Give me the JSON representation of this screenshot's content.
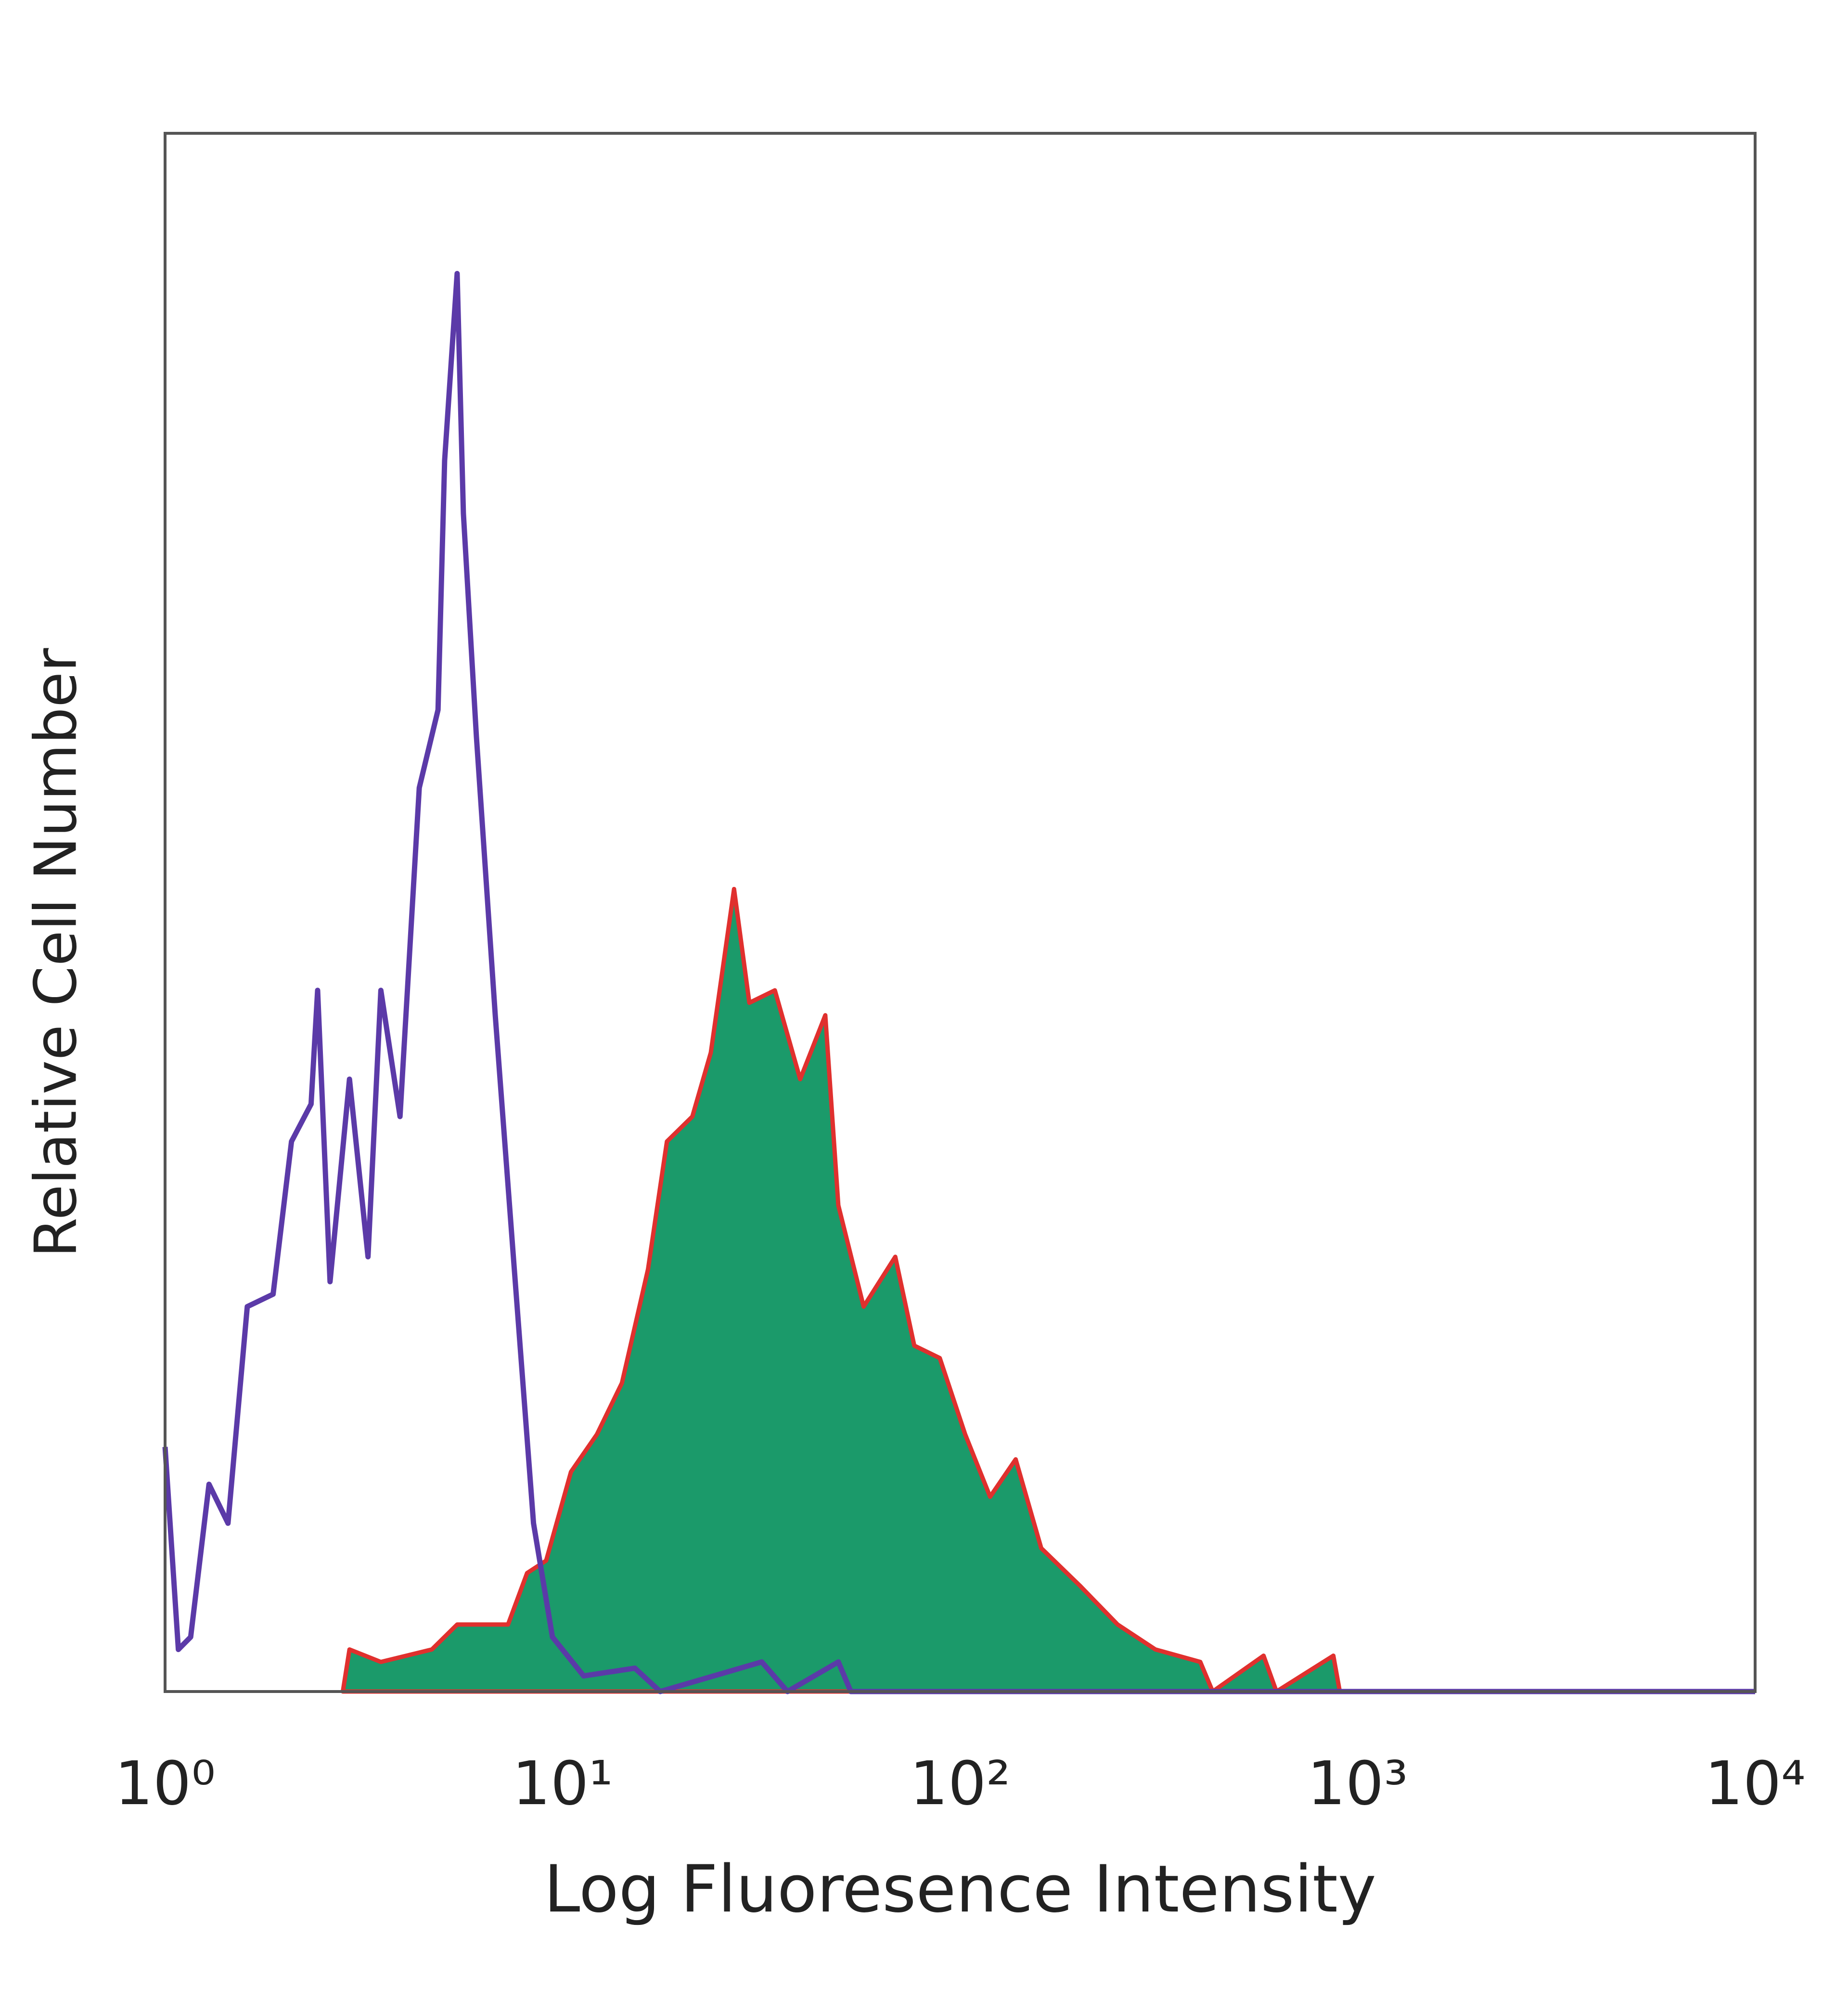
{
  "chart_data": {
    "type": "histogram-line",
    "xlabel": "Log Fluoresence Intensity",
    "ylabel": "Relative Cell Number",
    "xscale": "log",
    "xlim": [
      1,
      10000
    ],
    "xticks": [
      {
        "value": 1,
        "label": "10⁰"
      },
      {
        "value": 10,
        "label": "10¹"
      },
      {
        "value": 100,
        "label": "10²"
      },
      {
        "value": 1000,
        "label": "10³"
      },
      {
        "value": 10000,
        "label": "10⁴"
      }
    ],
    "ylim": [
      0,
      100
    ],
    "series": [
      {
        "color": "#5b3aa8",
        "x": [
          1,
          1.08,
          1.16,
          1.29,
          1.44,
          1.61,
          1.87,
          2.08,
          2.33,
          2.42,
          2.6,
          2.91,
          3.24,
          3.49,
          3.9,
          4.36,
          4.86,
          5.05,
          5.43,
          5.63,
          6.07,
          6.77,
          7.56,
          8.45,
          9.43,
          11.3,
          15.2,
          17.6,
          31.7,
          36.8,
          49.4,
          53.1,
          10000
        ],
        "values": [
          15.7,
          2.7,
          3.5,
          13.3,
          10.8,
          24.7,
          25.5,
          35.3,
          37.7,
          45,
          26.3,
          39.3,
          27.9,
          45,
          36.9,
          58,
          63,
          79,
          91,
          75.6,
          61.3,
          43.4,
          27.1,
          10.8,
          3.5,
          1,
          1.5,
          0,
          1.9,
          0,
          1.9,
          0,
          0
        ]
      },
      {
        "color": "#e0302e",
        "fill": "#1b9a6a",
        "x": [
          2.8,
          2.91,
          3.49,
          4.69,
          5.43,
          7.29,
          8.14,
          9.09,
          10.5,
          12.2,
          14.1,
          16.4,
          18.3,
          21.2,
          23.6,
          27,
          29.5,
          34.2,
          39.6,
          45.8,
          49.4,
          57.2,
          68.7,
          76.7,
          88.9,
          103,
          119,
          138,
          160,
          200,
          249,
          310,
          402,
          432,
          580,
          625,
          869,
          902
        ],
        "values": [
          0,
          2.7,
          1.9,
          2.7,
          4.3,
          4.3,
          7.6,
          8.4,
          14.1,
          16.5,
          19.8,
          27.1,
          35.3,
          36.9,
          41,
          51.5,
          44.2,
          45,
          39.3,
          43.4,
          31.2,
          24.7,
          27.9,
          22.2,
          21.4,
          16.5,
          12.5,
          14.9,
          9.2,
          6.8,
          4.3,
          2.7,
          1.9,
          0,
          2.3,
          0,
          2.3,
          0
        ]
      }
    ]
  }
}
